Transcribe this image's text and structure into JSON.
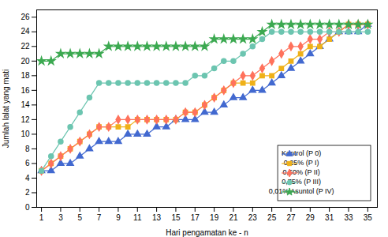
{
  "chart_data": {
    "type": "line",
    "xlabel": "Hari pengamatan ke - n",
    "ylabel": "Jumlah lalat yang mati",
    "x": [
      1,
      2,
      3,
      4,
      5,
      6,
      7,
      8,
      9,
      10,
      11,
      12,
      13,
      14,
      15,
      16,
      17,
      18,
      19,
      20,
      21,
      22,
      23,
      24,
      25,
      26,
      27,
      28,
      29,
      30,
      31,
      32,
      33,
      34,
      35
    ],
    "series": [
      {
        "name": "Kontrol (P 0)",
        "marker": "triangle",
        "values": [
          5,
          5,
          6,
          6,
          7,
          8,
          9,
          9,
          9,
          10,
          10,
          10,
          11,
          11,
          12,
          12,
          12,
          13,
          13,
          14,
          15,
          15,
          16,
          16,
          17,
          18,
          19,
          20,
          21,
          22,
          23,
          24,
          24,
          24,
          25
        ]
      },
      {
        "name": "0,25% (P I)",
        "marker": "square",
        "values": [
          5,
          6,
          7,
          8,
          9,
          10,
          11,
          11,
          11,
          11,
          12,
          12,
          12,
          12,
          12,
          13,
          13,
          14,
          15,
          16,
          17,
          17,
          17,
          18,
          18,
          19,
          20,
          21,
          22,
          22,
          23,
          24,
          25,
          25,
          25
        ]
      },
      {
        "name": "0,50% (P II)",
        "marker": "diamond",
        "values": [
          5,
          6,
          7,
          8,
          9,
          10,
          11,
          11,
          12,
          12,
          12,
          12,
          12,
          12,
          12,
          13,
          13,
          14,
          15,
          16,
          17,
          18,
          18,
          19,
          20,
          21,
          22,
          22,
          23,
          23,
          24,
          24,
          25,
          25,
          25
        ]
      },
      {
        "name": "0,75% (P III)",
        "marker": "circle",
        "values": [
          5,
          7,
          9,
          11,
          13,
          15,
          17,
          17,
          17,
          17,
          17,
          17,
          17,
          17,
          17,
          17,
          18,
          18,
          19,
          20,
          20,
          21,
          22,
          23,
          24,
          24,
          24,
          24,
          24,
          24,
          24,
          24,
          24,
          24,
          24
        ]
      },
      {
        "name": "0,01% Asuntol (P IV)",
        "marker": "star",
        "values": [
          20,
          20,
          21,
          21,
          21,
          21,
          21,
          22,
          22,
          22,
          22,
          22,
          22,
          22,
          22,
          22,
          22,
          22,
          23,
          23,
          23,
          23,
          23,
          24,
          25,
          25,
          25,
          25,
          25,
          25,
          25,
          25,
          25,
          25,
          25
        ]
      }
    ],
    "xlim": [
      0.5,
      36
    ],
    "ylim": [
      0,
      27
    ],
    "xticks": [
      1,
      3,
      5,
      7,
      9,
      11,
      13,
      15,
      17,
      19,
      21,
      23,
      25,
      27,
      29,
      31,
      33,
      35
    ],
    "yticks": [
      0,
      2,
      4,
      6,
      8,
      10,
      12,
      14,
      16,
      18,
      20,
      22,
      24,
      26
    ],
    "grid": false,
    "legend": "lower right"
  }
}
